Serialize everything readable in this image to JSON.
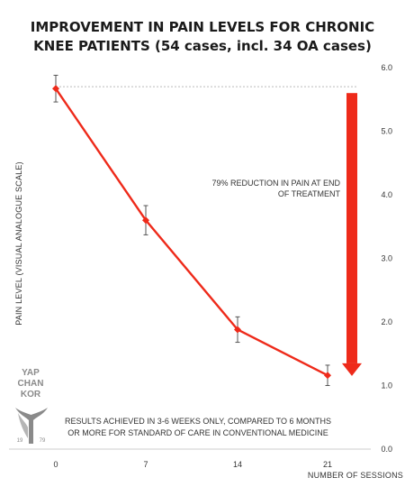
{
  "chart_data": {
    "type": "line",
    "title_line1": "IMPROVEMENT IN PAIN LEVELS FOR CHRONIC",
    "title_line2": "KNEE PATIENTS (54 cases, incl. 34 OA cases)",
    "xlabel": "NUMBER OF SESSIONS",
    "ylabel": "PAIN LEVEL (VISUAL ANALOGUE SCALE)",
    "x": [
      0,
      7,
      14,
      21
    ],
    "x_ticks": [
      "0",
      "7",
      "14",
      "21"
    ],
    "y_ticks": [
      "0.0",
      "1.0",
      "2.0",
      "3.0",
      "4.0",
      "5.0",
      "6.0"
    ],
    "ylim": [
      0,
      6
    ],
    "series": [
      {
        "values": [
          5.67,
          3.6,
          1.88,
          1.16
        ],
        "error": [
          0.21,
          0.23,
          0.2,
          0.16
        ],
        "color": "#ee2a1a"
      }
    ],
    "reference_line": {
      "value": 5.7,
      "style": "dotted",
      "color": "#bbbbbb"
    },
    "arrow": {
      "from": 5.6,
      "to": 1.15,
      "color": "#ee2a1a"
    },
    "annotations": {
      "reduction_line1": "79% REDUCTION IN PAIN AT END",
      "reduction_line2": "OF TREATMENT",
      "results_line1": "RESULTS ACHIEVED IN 3-6 WEEKS ONLY, COMPARED TO 6 MONTHS",
      "results_line2": "OR MORE FOR STANDARD OF CARE IN CONVENTIONAL MEDICINE"
    },
    "grid": false
  },
  "logo": {
    "line1": "YAP",
    "line2": "CHAN",
    "line3": "KOR",
    "year_left": "19",
    "year_right": "79",
    "color": "#8a8a8a"
  }
}
